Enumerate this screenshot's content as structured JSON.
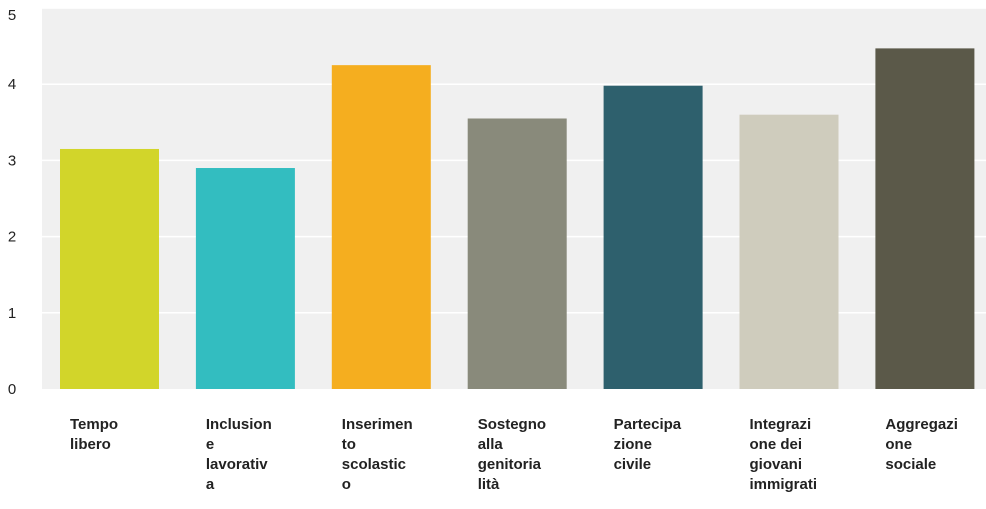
{
  "chart_data": {
    "type": "bar",
    "categories": [
      [
        "Tempo",
        "libero"
      ],
      [
        "Inclusion",
        "e",
        "lavorativ",
        "a"
      ],
      [
        "Inserimen",
        "to",
        "scolastic",
        "o"
      ],
      [
        "Sostegno",
        "alla",
        "genitoria",
        "lità"
      ],
      [
        "Partecipa",
        "zione",
        "civile"
      ],
      [
        "Integrazi",
        "one dei",
        "giovani",
        "immigrati"
      ],
      [
        "Aggregazi",
        "one",
        "sociale"
      ]
    ],
    "values": [
      3.15,
      2.9,
      4.25,
      3.55,
      3.98,
      3.6,
      4.47
    ],
    "colors": [
      "#d2d52a",
      "#33bdc0",
      "#f5ae1f",
      "#898a7b",
      "#2e606d",
      "#cfccbd",
      "#5b5949"
    ],
    "ylim": [
      0,
      5
    ],
    "yticks": [
      0,
      1,
      2,
      3,
      4,
      5
    ],
    "plot_background": "#f0f0f0",
    "gridlines": true,
    "legend": false
  }
}
